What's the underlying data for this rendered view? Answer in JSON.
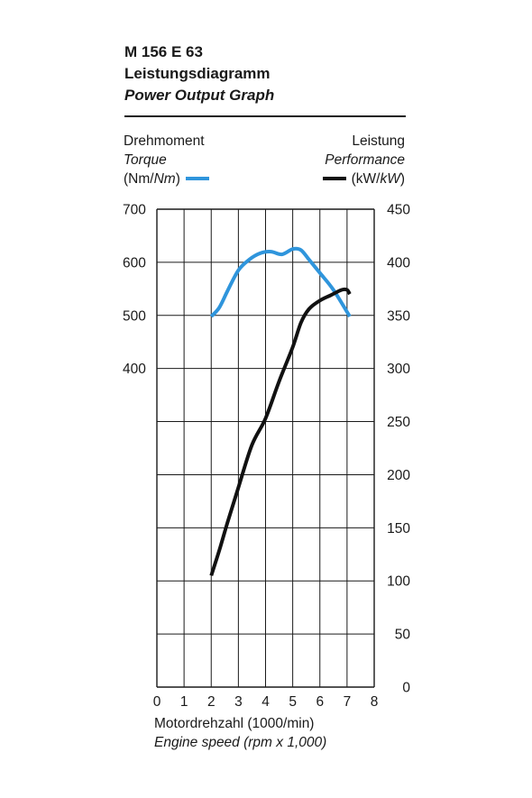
{
  "header": {
    "code": "M 156 E 63",
    "title_de": "Leistungsdiagramm",
    "title_en": "Power Output Graph"
  },
  "left_axis": {
    "label_de": "Drehmoment",
    "label_en": "Torque",
    "unit_open": "(Nm/",
    "unit_italic": "Nm",
    "unit_close": ")"
  },
  "right_axis": {
    "label_de": "Leistung",
    "label_en": "Performance",
    "unit_open": "(kW/",
    "unit_italic": "kW",
    "unit_close": ")"
  },
  "x_axis": {
    "label_de": "Motordrehzahl (1000/min)",
    "label_en": "Engine speed (rpm x 1,000)"
  },
  "colors": {
    "torque": "#2f95dc",
    "power": "#111111",
    "grid": "#1a1a1a"
  },
  "chart_data": {
    "type": "line",
    "x_ticks": [
      "0",
      "1",
      "2",
      "3",
      "4",
      "5",
      "6",
      "7",
      "8"
    ],
    "xlim": [
      0,
      8
    ],
    "left_ticks": [
      "400",
      "500",
      "600",
      "700"
    ],
    "left_tick_values": [
      400,
      500,
      600,
      700
    ],
    "right_ticks": [
      "0",
      "50",
      "100",
      "150",
      "200",
      "250",
      "300",
      "350",
      "400",
      "450"
    ],
    "right_tick_values": [
      0,
      50,
      100,
      150,
      200,
      250,
      300,
      350,
      400,
      450
    ],
    "ylim_right": [
      0,
      450
    ],
    "ylim_left": [
      -200,
      700
    ],
    "grid": true,
    "series": [
      {
        "name": "Torque",
        "axis": "left",
        "color_key": "torque",
        "x": [
          2.0,
          2.3,
          2.6,
          3.0,
          3.4,
          3.8,
          4.2,
          4.6,
          5.0,
          5.3,
          5.6,
          6.0,
          6.5,
          7.1
        ],
        "y": [
          498,
          515,
          546,
          585,
          605,
          617,
          620,
          615,
          625,
          623,
          605,
          580,
          548,
          498
        ]
      },
      {
        "name": "Performance",
        "axis": "right",
        "color_key": "power",
        "x": [
          2.0,
          2.3,
          2.6,
          3.0,
          3.5,
          4.0,
          4.5,
          5.0,
          5.3,
          5.6,
          6.0,
          6.4,
          6.8,
          7.0,
          7.1
        ],
        "y": [
          105,
          129,
          155,
          188,
          228,
          253,
          288,
          320,
          343,
          356,
          364,
          369,
          374,
          374,
          370
        ]
      }
    ]
  }
}
